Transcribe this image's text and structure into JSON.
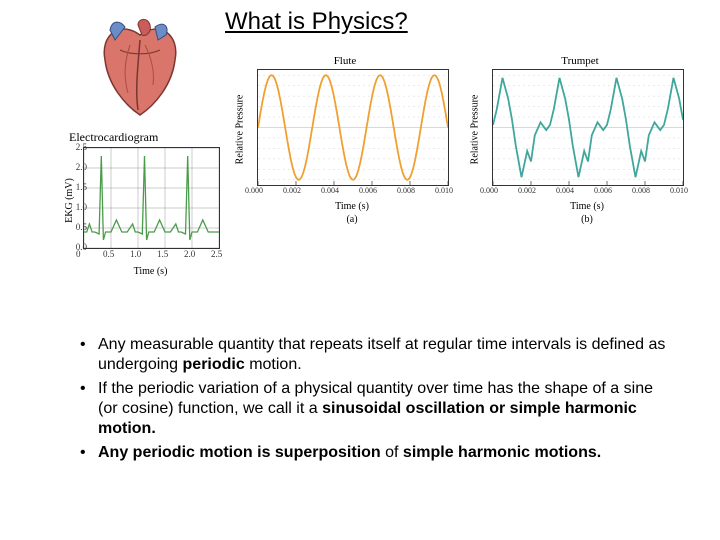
{
  "title": "What is Physics?",
  "heart": {
    "colors": {
      "muscle": "#d9756a",
      "artery": "#cc5c5c",
      "vein": "#6b8dc7",
      "outline": "#7a3631"
    }
  },
  "ecg": {
    "title": "Electrocardiogram",
    "ylabel": "EKG (mV)",
    "xlabel": "Time (s)",
    "xlim": [
      0,
      2.5
    ],
    "ylim": [
      0,
      2.5
    ],
    "xticks": [
      0,
      0.5,
      1.0,
      1.5,
      2.0,
      2.5
    ],
    "yticks": [
      0,
      0.5,
      1.0,
      1.5,
      2.0,
      2.5
    ],
    "line_color": "#4a9c4a",
    "grid_color": "#999999",
    "background_color": "#ffffff",
    "title_fontsize": 12,
    "label_fontsize": 11,
    "tick_fontsize": 9,
    "series": [
      [
        0.0,
        0.4
      ],
      [
        0.05,
        0.4
      ],
      [
        0.1,
        0.6
      ],
      [
        0.15,
        0.4
      ],
      [
        0.2,
        0.4
      ],
      [
        0.28,
        0.35
      ],
      [
        0.32,
        2.3
      ],
      [
        0.36,
        0.2
      ],
      [
        0.4,
        0.4
      ],
      [
        0.5,
        0.4
      ],
      [
        0.6,
        0.7
      ],
      [
        0.7,
        0.4
      ],
      [
        0.8,
        0.4
      ],
      [
        0.9,
        0.6
      ],
      [
        0.95,
        0.4
      ],
      [
        1.0,
        0.4
      ],
      [
        1.08,
        0.35
      ],
      [
        1.12,
        2.3
      ],
      [
        1.16,
        0.2
      ],
      [
        1.2,
        0.4
      ],
      [
        1.3,
        0.4
      ],
      [
        1.4,
        0.7
      ],
      [
        1.5,
        0.4
      ],
      [
        1.6,
        0.4
      ],
      [
        1.7,
        0.6
      ],
      [
        1.75,
        0.4
      ],
      [
        1.8,
        0.4
      ],
      [
        1.88,
        0.35
      ],
      [
        1.92,
        2.3
      ],
      [
        1.96,
        0.2
      ],
      [
        2.0,
        0.4
      ],
      [
        2.1,
        0.4
      ],
      [
        2.2,
        0.7
      ],
      [
        2.3,
        0.4
      ],
      [
        2.5,
        0.4
      ]
    ]
  },
  "flute": {
    "type": "line",
    "title": "Flute",
    "ylabel": "Relative Pressure",
    "xlabel": "Time (s)",
    "subplot_label": "(a)",
    "xlim": [
      0,
      0.01
    ],
    "ylim": [
      -1.1,
      1.1
    ],
    "xticks": [
      "0.000",
      "0.002",
      "0.004",
      "0.006",
      "0.008",
      "0.010"
    ],
    "line_color": "#f0a030",
    "grid_color": "#cccccc",
    "background_color": "#ffffff",
    "line_width": 1.8,
    "title_fontsize": 11,
    "label_fontsize": 10,
    "tick_fontsize": 8,
    "frequency_hz": 350,
    "amplitude": 1.0
  },
  "trumpet": {
    "type": "line",
    "title": "Trumpet",
    "ylabel": "Relative Pressure",
    "xlabel": "Time (s)",
    "subplot_label": "(b)",
    "xlim": [
      0,
      0.01
    ],
    "ylim": [
      -1.1,
      1.1
    ],
    "xticks": [
      "0.000",
      "0.002",
      "0.004",
      "0.006",
      "0.008",
      "0.010"
    ],
    "line_color": "#3fa79b",
    "grid_color": "#cccccc",
    "background_color": "#ffffff",
    "line_width": 1.8,
    "title_fontsize": 11,
    "label_fontsize": 10,
    "tick_fontsize": 8,
    "series": [
      [
        0.0,
        0.05
      ],
      [
        0.0002,
        0.35
      ],
      [
        0.0005,
        0.95
      ],
      [
        0.0008,
        0.55
      ],
      [
        0.001,
        0.15
      ],
      [
        0.0012,
        -0.35
      ],
      [
        0.0015,
        -0.95
      ],
      [
        0.0018,
        -0.45
      ],
      [
        0.002,
        -0.65
      ],
      [
        0.0022,
        -0.15
      ],
      [
        0.0025,
        0.1
      ],
      [
        0.0028,
        -0.05
      ],
      [
        0.003,
        0.05
      ],
      [
        0.0032,
        0.35
      ],
      [
        0.0035,
        0.95
      ],
      [
        0.0038,
        0.55
      ],
      [
        0.004,
        0.15
      ],
      [
        0.0042,
        -0.35
      ],
      [
        0.0045,
        -0.95
      ],
      [
        0.0048,
        -0.45
      ],
      [
        0.005,
        -0.65
      ],
      [
        0.0052,
        -0.15
      ],
      [
        0.0055,
        0.1
      ],
      [
        0.0058,
        -0.05
      ],
      [
        0.006,
        0.05
      ],
      [
        0.0062,
        0.35
      ],
      [
        0.0065,
        0.95
      ],
      [
        0.0068,
        0.55
      ],
      [
        0.007,
        0.15
      ],
      [
        0.0072,
        -0.35
      ],
      [
        0.0075,
        -0.95
      ],
      [
        0.0078,
        -0.45
      ],
      [
        0.008,
        -0.65
      ],
      [
        0.0082,
        -0.15
      ],
      [
        0.0085,
        0.1
      ],
      [
        0.0088,
        -0.05
      ],
      [
        0.009,
        0.05
      ],
      [
        0.0092,
        0.35
      ],
      [
        0.0095,
        0.95
      ],
      [
        0.0098,
        0.55
      ],
      [
        0.01,
        0.15
      ]
    ]
  },
  "bullets": [
    {
      "pre": "Any measurable quantity that repeats itself at regular time intervals is defined as undergoing ",
      "bold1": "periodic",
      "mid": " motion.",
      "bold2": "",
      "post": ""
    },
    {
      "pre": "If the periodic variation of a physical quantity over time has the shape of a sine (or cosine) function, we call it a ",
      "bold1": "sinusoidal oscillation or simple harmonic motion.",
      "mid": "",
      "bold2": "",
      "post": ""
    },
    {
      "pre": "",
      "bold1": "Any periodic motion is superposition",
      "mid": " of ",
      "bold2": "simple harmonic motions.",
      "post": ""
    }
  ]
}
